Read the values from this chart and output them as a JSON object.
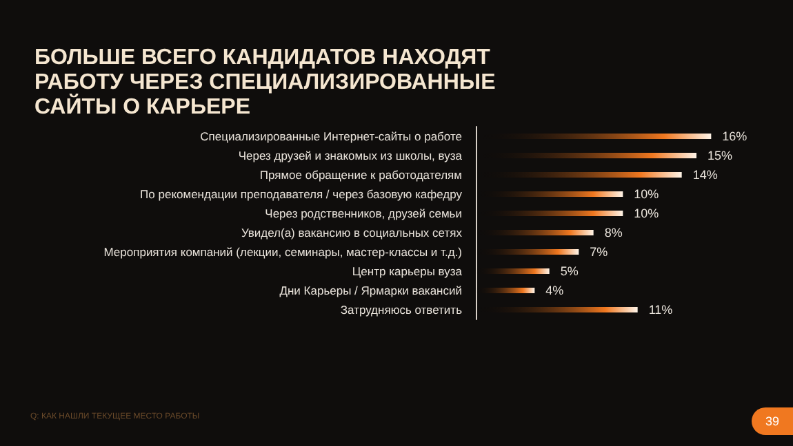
{
  "chart_data": {
    "type": "bar",
    "orientation": "horizontal",
    "title": "БОЛЬШЕ ВСЕГО КАНДИДАТОВ НАХОДЯТ РАБОТУ ЧЕРЕЗ СПЕЦИАЛИЗИРОВАННЫЕ САЙТЫ О КАРЬЕРЕ",
    "categories": [
      "Специализированные Интернет-сайты о работе",
      "Через друзей и знакомых из школы, вуза",
      "Прямое обращение к работодателям",
      "По рекомендации преподавателя / через базовую кафедру",
      "Через родственников, друзей семьи",
      "Увидел(а) вакансию в социальных сетях",
      "Мероприятия компаний (лекции, семинары, мастер-классы и т.д.)",
      "Центр карьеры вуза",
      "Дни Карьеры / Ярмарки вакансий",
      "Затрудняюсь ответить"
    ],
    "values": [
      16,
      15,
      14,
      10,
      10,
      8,
      7,
      5,
      4,
      11
    ],
    "value_labels": [
      "16%",
      "15%",
      "14%",
      "10%",
      "10%",
      "8%",
      "7%",
      "5%",
      "4%",
      "11%"
    ],
    "color": "#f07820",
    "annotations": [
      "Q: КАК НАШЛИ ТЕКУЩЕЕ МЕСТО РАБОТЫ",
      "39"
    ]
  }
}
